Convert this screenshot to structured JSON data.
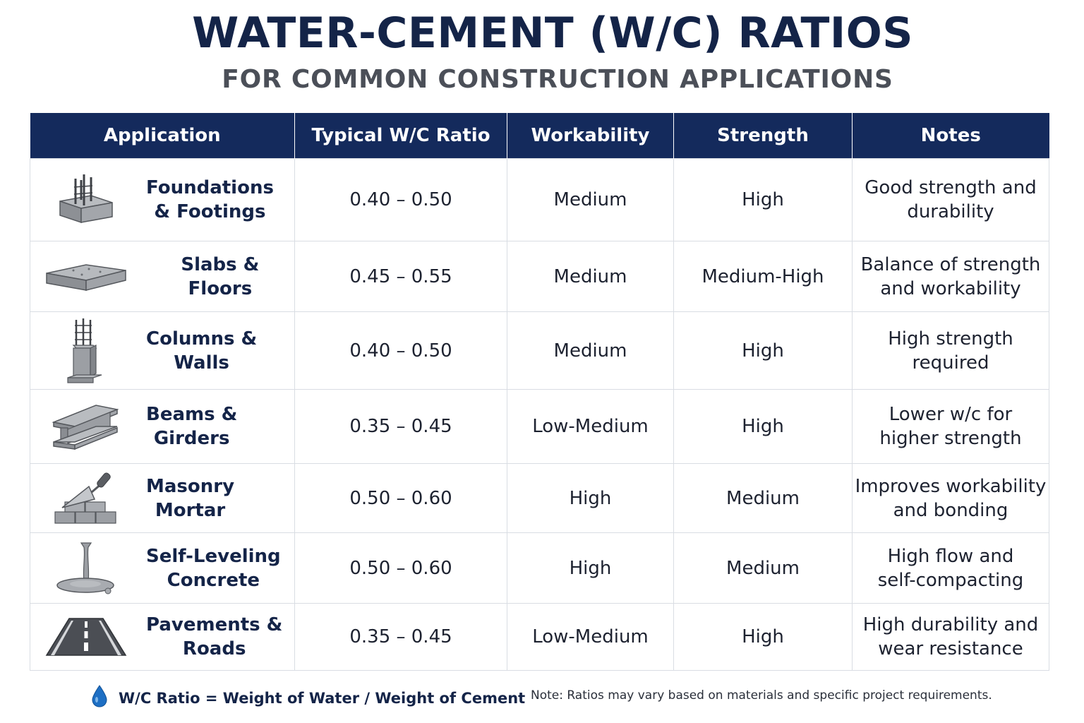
{
  "title": "WATER-CEMENT (W/C) RATIOS",
  "subtitle": "FOR COMMON CONSTRUCTION APPLICATIONS",
  "table": {
    "headers": [
      "Application",
      "Typical W/C Ratio",
      "Workability",
      "Strength",
      "Notes"
    ],
    "rows": [
      {
        "icon": "foundation-icon",
        "application": "Foundations\n& Footings",
        "ratio": "0.40 – 0.50",
        "workability": "Medium",
        "strength": "High",
        "notes": "Good strength and\ndurability"
      },
      {
        "icon": "slab-icon",
        "application": "Slabs & Floors",
        "ratio": "0.45 – 0.55",
        "workability": "Medium",
        "strength": "Medium-High",
        "notes": "Balance of strength\nand workability"
      },
      {
        "icon": "column-icon",
        "application": "Columns &\nWalls",
        "ratio": "0.40 – 0.50",
        "workability": "Medium",
        "strength": "High",
        "notes": "High strength\nrequired"
      },
      {
        "icon": "beam-icon",
        "application": "Beams &\nGirders",
        "ratio": "0.35 – 0.45",
        "workability": "Low-Medium",
        "strength": "High",
        "notes": "Lower w/c for\nhigher strength"
      },
      {
        "icon": "trowel-bricks-icon",
        "application": "Masonry\nMortar",
        "ratio": "0.50 – 0.60",
        "workability": "High",
        "strength": "Medium",
        "notes": "Improves workability\nand bonding"
      },
      {
        "icon": "pour-icon",
        "application": "Self-Leveling\nConcrete",
        "ratio": "0.50 – 0.60",
        "workability": "High",
        "strength": "Medium",
        "notes": "High flow and\nself-compacting"
      },
      {
        "icon": "road-icon",
        "application": "Pavements &\nRoads",
        "ratio": "0.35 – 0.45",
        "workability": "Low-Medium",
        "strength": "High",
        "notes": "High durability and\nwear resistance"
      }
    ]
  },
  "footer": {
    "formula": "W/C Ratio = Weight of Water / Weight of Cement",
    "note": "Note: Ratios may vary based on materials and specific project requirements."
  },
  "colors": {
    "header_bg": "#142a5c",
    "title": "#142448",
    "drop": "#1d6fc4"
  }
}
